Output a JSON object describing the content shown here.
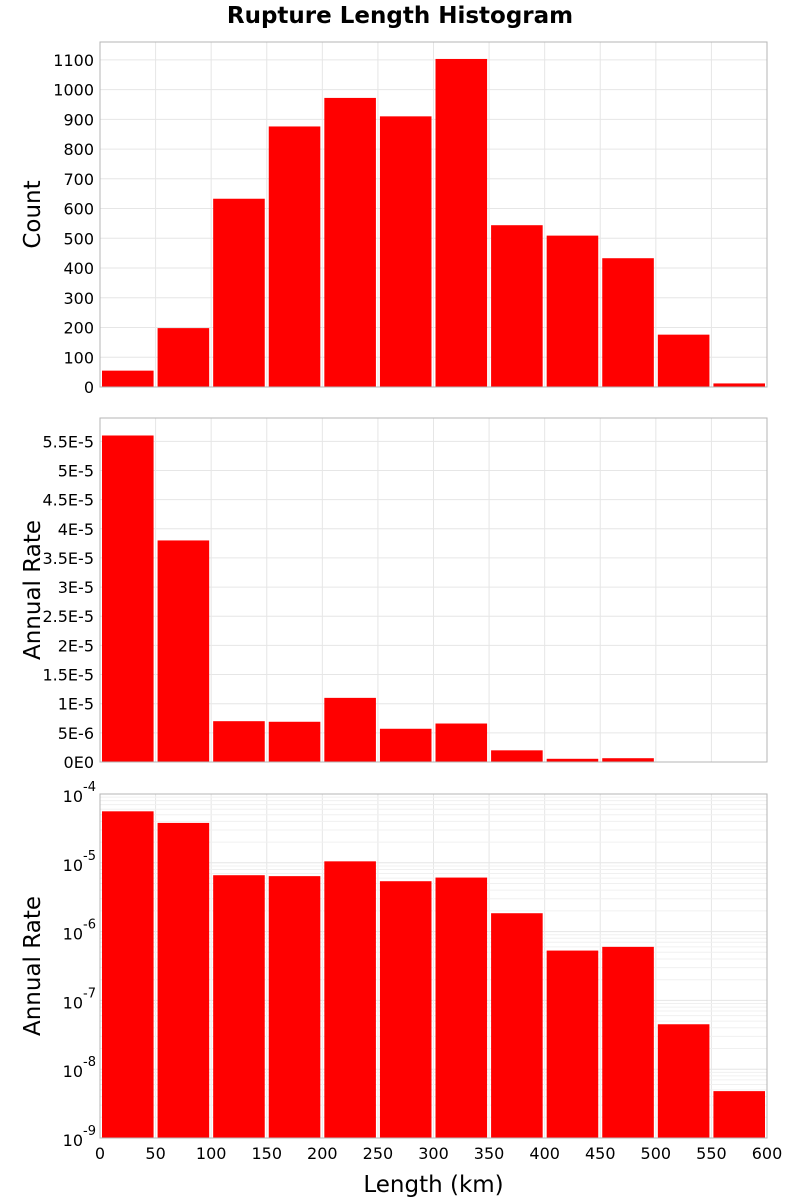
{
  "chart_data": [
    {
      "type": "bar",
      "title": "Rupture Length Histogram",
      "ylabel": "Count",
      "xlabel": "",
      "x_bin_starts": [
        0,
        50,
        100,
        150,
        200,
        250,
        300,
        350,
        400,
        450,
        500,
        550
      ],
      "bin_width": 50,
      "values": [
        55,
        198,
        633,
        876,
        972,
        910,
        1103,
        544,
        509,
        433,
        176,
        12
      ],
      "xlim": [
        0,
        600
      ],
      "ylim": [
        0,
        1160
      ],
      "yticks": [
        0,
        100,
        200,
        300,
        400,
        500,
        600,
        700,
        800,
        900,
        1000,
        1100
      ],
      "ytick_labels": [
        "0",
        "100",
        "200",
        "300",
        "400",
        "500",
        "600",
        "700",
        "800",
        "900",
        "1000",
        "1100"
      ],
      "color": "#ff0000",
      "grid": true
    },
    {
      "type": "bar",
      "ylabel": "Annual Rate",
      "xlabel": "",
      "x_bin_starts": [
        0,
        50,
        100,
        150,
        200,
        250,
        300,
        350,
        400,
        450,
        500,
        550
      ],
      "bin_width": 50,
      "values": [
        5.6e-05,
        3.8e-05,
        7e-06,
        6.9e-06,
        1.1e-05,
        5.7e-06,
        6.6e-06,
        2e-06,
        5.5e-07,
        6.5e-07,
        5e-08,
        5e-09
      ],
      "xlim": [
        0,
        600
      ],
      "ylim": [
        0,
        5.9e-05
      ],
      "yticks": [
        0,
        5e-06,
        1e-05,
        1.5e-05,
        2e-05,
        2.5e-05,
        3e-05,
        3.5e-05,
        4e-05,
        4.5e-05,
        5e-05,
        5.5e-05
      ],
      "ytick_labels": [
        "0E0",
        "5E-6",
        "1E-5",
        "1.5E-5",
        "2E-5",
        "2.5E-5",
        "3E-5",
        "3.5E-5",
        "4E-5",
        "4.5E-5",
        "5E-5",
        "5.5E-5"
      ],
      "color": "#ff0000",
      "grid": true
    },
    {
      "type": "bar",
      "ylabel": "Annual Rate",
      "xlabel": "Length (km)",
      "yscale": "log",
      "x_bin_starts": [
        0,
        50,
        100,
        150,
        200,
        250,
        300,
        350,
        400,
        450,
        500,
        550
      ],
      "bin_width": 50,
      "values": [
        5.6e-05,
        3.8e-05,
        6.6e-06,
        6.4e-06,
        1.05e-05,
        5.4e-06,
        6.1e-06,
        1.85e-06,
        5.3e-07,
        6e-07,
        4.5e-08,
        4.8e-09
      ],
      "xlim": [
        0,
        600
      ],
      "ylim": [
        1e-09,
        0.0001
      ],
      "yticks": [
        1e-09,
        1e-08,
        1e-07,
        1e-06,
        1e-05,
        0.0001
      ],
      "ytick_mantissa": "10",
      "ytick_exponents": [
        "-9",
        "-8",
        "-7",
        "-6",
        "-5",
        "-4"
      ],
      "xticks": [
        0,
        50,
        100,
        150,
        200,
        250,
        300,
        350,
        400,
        450,
        500,
        550,
        600
      ],
      "xtick_labels": [
        "0",
        "50",
        "100",
        "150",
        "200",
        "250",
        "300",
        "350",
        "400",
        "450",
        "500",
        "550",
        "600"
      ],
      "color": "#ff0000",
      "grid": true
    }
  ]
}
